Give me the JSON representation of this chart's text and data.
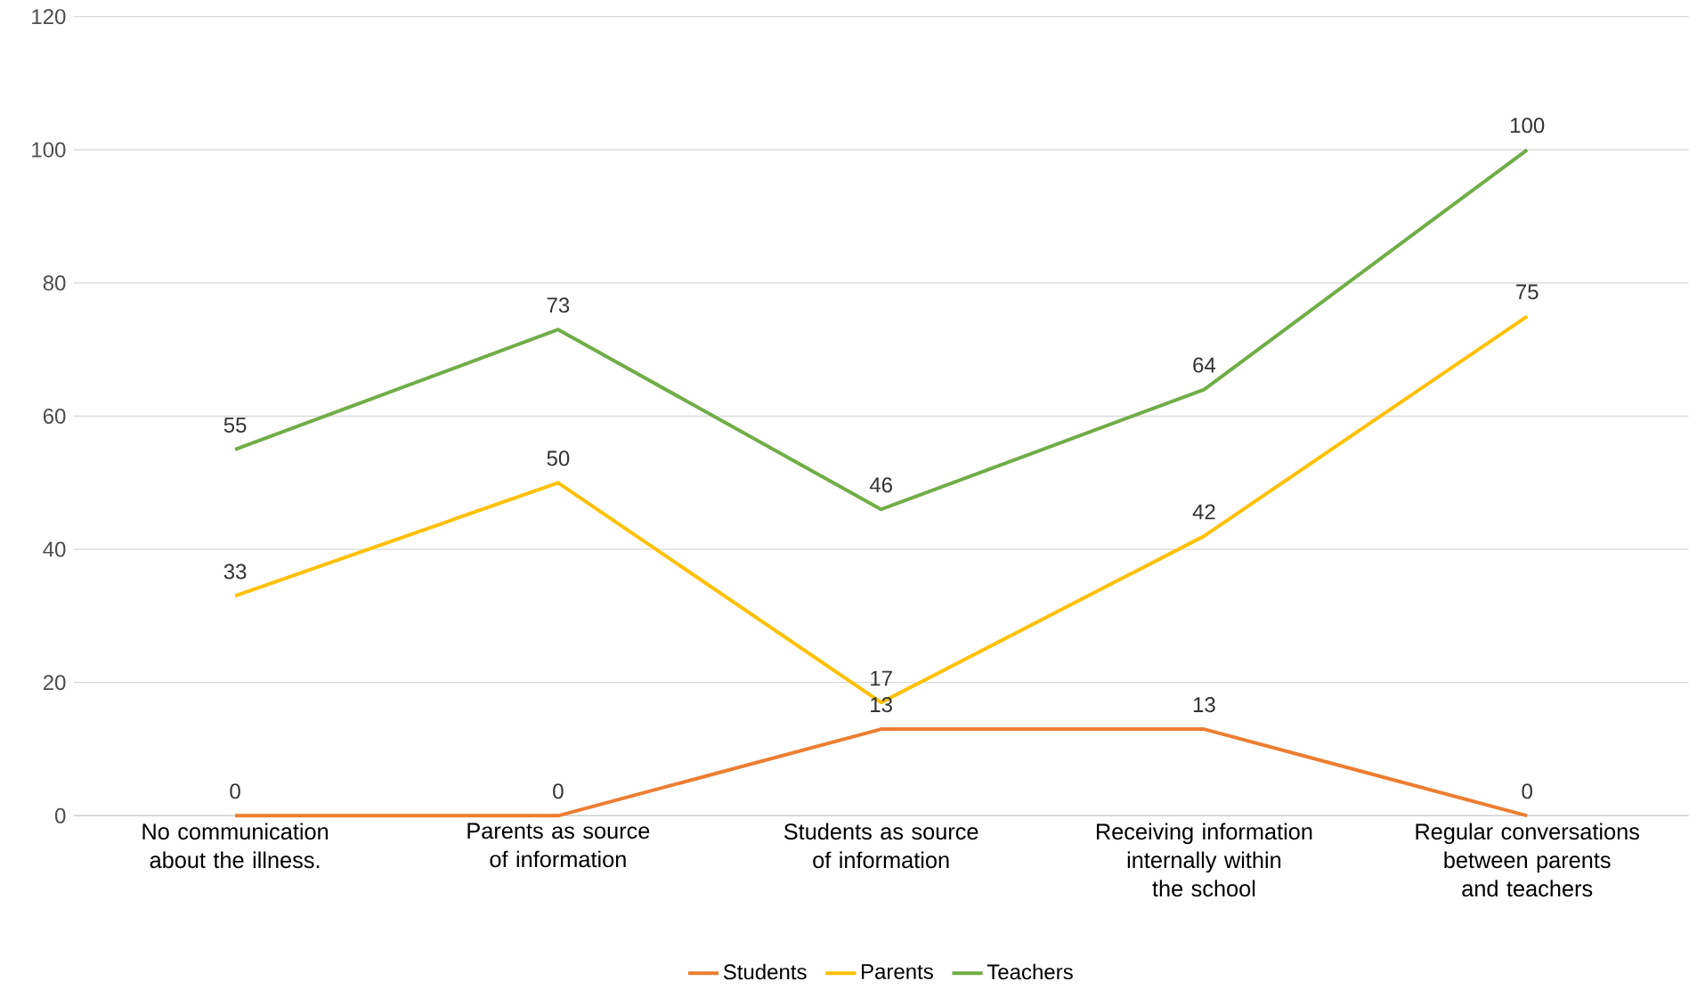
{
  "chart_data": {
    "type": "line",
    "categories": [
      "No communication about the illness.",
      "Parents as source of information",
      "Students as source of information",
      "Receiving information internally within the school",
      "Regular conversations between parents and teachers"
    ],
    "series": [
      {
        "name": "Students",
        "color": "#ed7d31",
        "values": [
          0,
          0,
          13,
          13,
          0
        ]
      },
      {
        "name": "Parents",
        "color": "#ffc000",
        "values": [
          33,
          50,
          17,
          42,
          75
        ]
      },
      {
        "name": "Teachers",
        "color": "#70ad47",
        "values": [
          55,
          73,
          46,
          64,
          100
        ]
      }
    ],
    "ylim": [
      0,
      120
    ],
    "yticks": [
      0,
      20,
      40,
      60,
      80,
      100,
      120
    ],
    "grid": "y",
    "legend": "bottom",
    "data_labels": true,
    "marker": "none",
    "line_style": "solid"
  }
}
